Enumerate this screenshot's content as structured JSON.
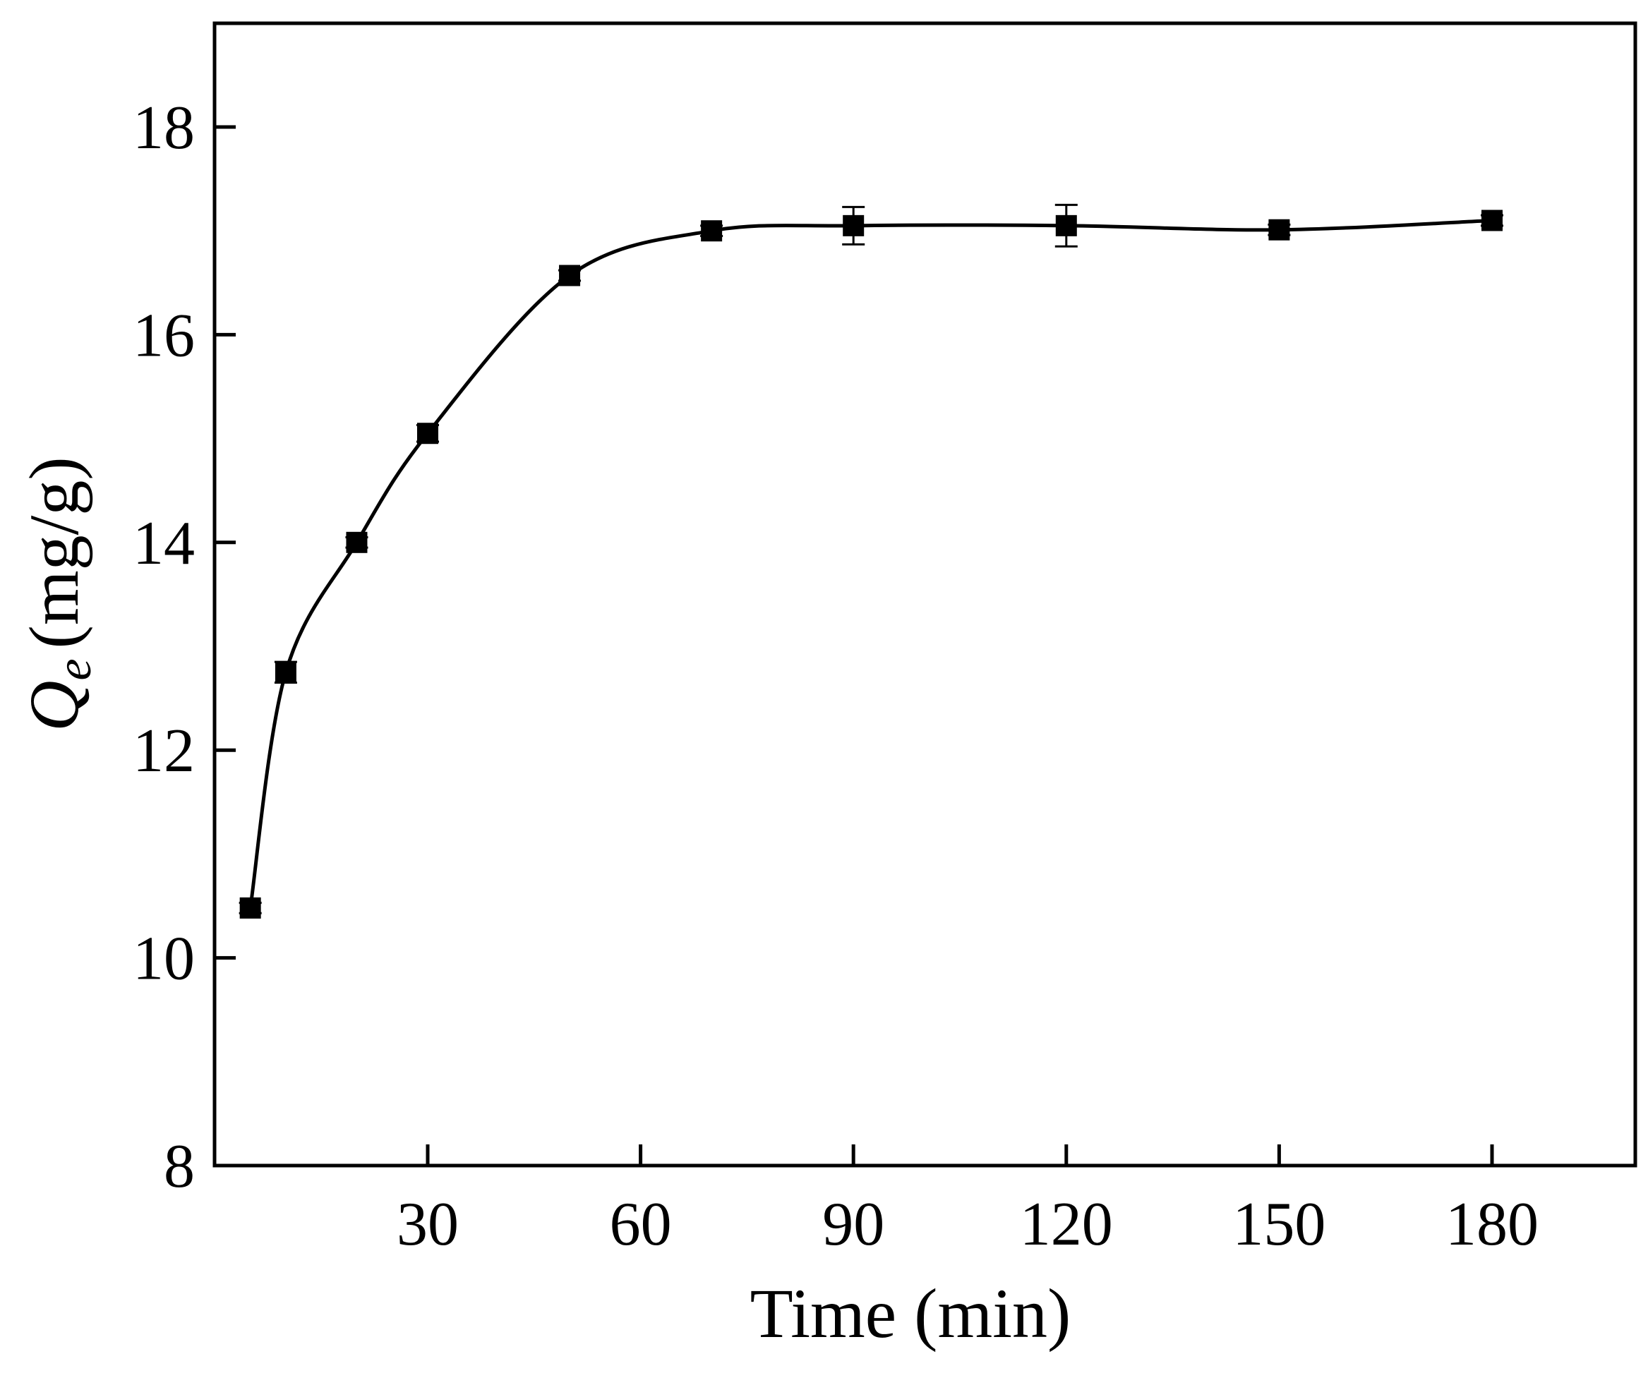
{
  "chart_data": {
    "type": "line",
    "title": "",
    "xlabel": "Time (min)",
    "ylabel": {
      "symbol": "Q",
      "subscript": "e",
      "unit": "(mg/g)"
    },
    "xlim": [
      0,
      195
    ],
    "ylim": [
      8,
      19
    ],
    "x_ticks": [
      30,
      60,
      90,
      120,
      150,
      180
    ],
    "y_ticks": [
      8,
      10,
      12,
      14,
      16,
      18
    ],
    "grid": false,
    "legend": "none",
    "colors": {
      "line": "#000000",
      "marker": "#000000",
      "background": "#ffffff"
    },
    "series": [
      {
        "x": [
          5,
          10,
          20,
          30,
          50,
          70,
          90,
          120,
          150,
          180
        ],
        "y": [
          10.48,
          12.75,
          14.0,
          15.05,
          16.57,
          17.0,
          17.05,
          17.05,
          17.01,
          17.1
        ],
        "error": [
          0.05,
          0.1,
          0.05,
          0.08,
          0.05,
          0.05,
          0.18,
          0.2,
          0.05,
          0.05
        ]
      }
    ]
  }
}
